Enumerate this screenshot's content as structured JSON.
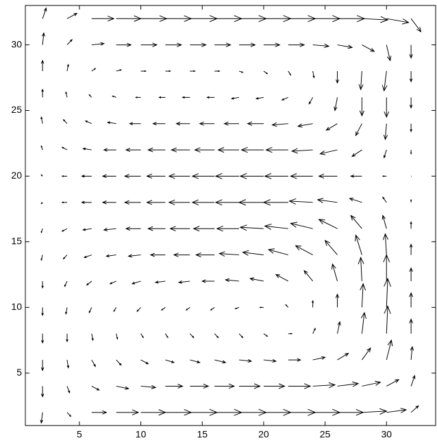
{
  "chart_data": {
    "type": "quiver",
    "color": "#000000",
    "xlim": [
      0.6,
      34
    ],
    "ylim": [
      1,
      33
    ],
    "xticks": [
      5,
      10,
      15,
      20,
      25,
      30
    ],
    "yticks": [
      5,
      10,
      15,
      20,
      25,
      30
    ],
    "x": [
      2,
      4,
      6,
      8,
      10,
      12,
      14,
      16,
      18,
      20,
      22,
      24,
      26,
      28,
      30,
      32
    ],
    "y": [
      2,
      4,
      6,
      8,
      10,
      12,
      14,
      16,
      18,
      20,
      22,
      24,
      26,
      28,
      30,
      32
    ],
    "u": [
      [
        -0.1,
        0.3,
        1.2,
        1.8,
        2.0,
        2.1,
        2.2,
        2.2,
        2.2,
        2.2,
        2.2,
        2.2,
        2.1,
        2.0,
        1.6,
        0.6
      ],
      [
        0,
        0.2,
        0.6,
        1.0,
        1.2,
        1.4,
        1.5,
        1.6,
        1.7,
        1.7,
        1.8,
        1.8,
        1.7,
        1.5,
        1.0,
        0.3
      ],
      [
        0,
        0.1,
        0.3,
        0.4,
        0.6,
        0.7,
        0.8,
        0.9,
        1.0,
        1.0,
        1.0,
        1.0,
        0.9,
        0.7,
        0.4,
        0.1
      ],
      [
        0,
        0,
        0.1,
        0.1,
        0.2,
        0.2,
        0.3,
        0.3,
        0.3,
        0.3,
        0.3,
        0.2,
        0.2,
        0.2,
        0.1,
        0
      ],
      [
        0,
        -0.1,
        -0.2,
        -0.2,
        -0.3,
        -0.3,
        -0.3,
        -0.3,
        -0.3,
        -0.3,
        -0.2,
        0,
        0,
        0.1,
        0.1,
        0
      ],
      [
        0,
        -0.2,
        -0.4,
        -0.5,
        -0.7,
        -0.8,
        -0.9,
        -1.0,
        -1.1,
        -1.1,
        -1.0,
        -0.7,
        -0.4,
        -0.1,
        0,
        0
      ],
      [
        -0.1,
        -0.3,
        -0.6,
        -0.8,
        -1.0,
        -1.2,
        -1.3,
        -1.5,
        -1.6,
        -1.7,
        -1.6,
        -1.4,
        -1.0,
        -0.5,
        -0.1,
        0
      ],
      [
        -0.1,
        -0.4,
        -0.7,
        -1.0,
        -1.2,
        -1.4,
        -1.6,
        -1.7,
        -1.8,
        -1.9,
        -1.9,
        -1.8,
        -1.5,
        -0.9,
        -0.3,
        0
      ],
      [
        -0.1,
        -0.4,
        -0.8,
        -1.1,
        -1.3,
        -1.5,
        -1.7,
        -1.8,
        -1.9,
        -2.0,
        -2.0,
        -1.9,
        -1.6,
        -1.0,
        -0.3,
        0
      ],
      [
        -0.1,
        -0.4,
        -0.8,
        -1.1,
        -1.3,
        -1.5,
        -1.7,
        -1.8,
        -1.9,
        -1.9,
        -1.9,
        -1.8,
        -1.5,
        -0.9,
        -0.3,
        0
      ],
      [
        -0.1,
        -0.4,
        -0.7,
        -1.0,
        -1.2,
        -1.4,
        -1.5,
        -1.6,
        -1.7,
        -1.8,
        -1.8,
        -1.7,
        -1.4,
        -0.8,
        -0.2,
        0
      ],
      [
        -0.1,
        -0.3,
        -0.5,
        -0.7,
        -0.9,
        -1.0,
        -1.1,
        -1.2,
        -1.2,
        -1.3,
        -1.3,
        -1.2,
        -0.9,
        -0.5,
        -0.1,
        0
      ],
      [
        0,
        -0.1,
        -0.2,
        -0.3,
        -0.4,
        -0.5,
        -0.6,
        -0.6,
        -0.6,
        -0.6,
        -0.5,
        -0.3,
        -0.2,
        0,
        0,
        0
      ],
      [
        0,
        0.1,
        0.3,
        0.4,
        0.4,
        0.4,
        0.4,
        0.4,
        0.3,
        0.3,
        0.2,
        0.1,
        0,
        -0.1,
        -0.2,
        0
      ],
      [
        0.1,
        0.4,
        1.0,
        1.2,
        1.3,
        1.3,
        1.3,
        1.3,
        1.3,
        1.3,
        1.3,
        1.3,
        1.2,
        1.0,
        0.3,
        0
      ],
      [
        0.3,
        0.8,
        1.8,
        2.0,
        2.1,
        2.1,
        2.2,
        2.2,
        2.2,
        2.2,
        2.2,
        2.2,
        2.2,
        2.1,
        1.8,
        0.8
      ]
    ],
    "v": [
      [
        -0.8,
        -0.3,
        0,
        0,
        0,
        0,
        0,
        0,
        0,
        0,
        0,
        0,
        0,
        0.1,
        0.2,
        0.5
      ],
      [
        -0.8,
        -0.5,
        -0.3,
        -0.2,
        -0.1,
        0,
        0,
        0,
        0,
        0,
        0,
        0.1,
        0.2,
        0.3,
        0.5,
        0.8
      ],
      [
        -0.8,
        -0.6,
        -0.5,
        -0.4,
        -0.3,
        -0.2,
        -0.2,
        -0.2,
        -0.1,
        -0.1,
        0,
        0.2,
        0.5,
        0.9,
        1.5,
        1.0
      ],
      [
        -0.7,
        -0.6,
        -0.5,
        -0.4,
        -0.3,
        -0.3,
        -0.3,
        -0.3,
        -0.3,
        -0.2,
        0,
        0.4,
        0.9,
        1.6,
        2.1,
        1.1
      ],
      [
        -0.6,
        -0.5,
        -0.4,
        -0.3,
        -0.3,
        -0.2,
        -0.2,
        -0.2,
        -0.1,
        0,
        0.2,
        0.5,
        1.0,
        1.8,
        2.2,
        1.1
      ],
      [
        -0.5,
        -0.4,
        -0.3,
        -0.2,
        -0.2,
        -0.1,
        -0.1,
        0,
        0.1,
        0.2,
        0.5,
        0.8,
        1.3,
        1.8,
        2.0,
        1.0
      ],
      [
        -0.4,
        -0.3,
        -0.2,
        -0.1,
        -0.1,
        0,
        0,
        0,
        0.1,
        0.2,
        0.4,
        0.7,
        1.1,
        1.5,
        1.6,
        0.8
      ],
      [
        -0.3,
        -0.2,
        -0.1,
        -0.1,
        0,
        0,
        0,
        0,
        0,
        0.1,
        0.2,
        0.4,
        0.7,
        1.0,
        1.0,
        0.5
      ],
      [
        -0.1,
        0,
        0,
        0,
        0,
        0,
        0,
        0,
        0,
        0,
        0,
        0.1,
        0.2,
        0.3,
        0.4,
        0.2
      ],
      [
        0.1,
        0,
        0,
        0,
        0,
        0,
        0,
        0,
        0,
        0,
        0,
        0,
        0,
        0,
        0,
        0
      ],
      [
        0.3,
        0.2,
        0.1,
        0,
        0,
        0,
        0,
        0,
        0,
        0,
        0,
        -0.1,
        -0.3,
        -0.5,
        -0.6,
        -0.3
      ],
      [
        0.5,
        0.3,
        0.2,
        0.1,
        0,
        0,
        0,
        0,
        0,
        0,
        -0.1,
        -0.2,
        -0.5,
        -0.9,
        -1.2,
        -0.6
      ],
      [
        0.6,
        0.4,
        0.2,
        0.1,
        0,
        0,
        0,
        0,
        -0.1,
        -0.1,
        -0.2,
        -0.5,
        -1.0,
        -1.4,
        -1.5,
        -0.8
      ],
      [
        0.8,
        0.5,
        0.2,
        0.1,
        0,
        0,
        0,
        0,
        -0.1,
        -0.2,
        -0.3,
        -0.5,
        -0.9,
        -1.4,
        -1.5,
        -0.8
      ],
      [
        0.9,
        0.4,
        0.1,
        0,
        0,
        0,
        0,
        0,
        0,
        0,
        0,
        -0.1,
        -0.2,
        -0.5,
        -1.2,
        -1.0
      ],
      [
        0.8,
        0.4,
        0,
        0,
        0,
        0,
        0,
        0,
        0,
        0,
        0,
        0,
        0,
        -0.1,
        -0.3,
        -1.0
      ]
    ]
  }
}
